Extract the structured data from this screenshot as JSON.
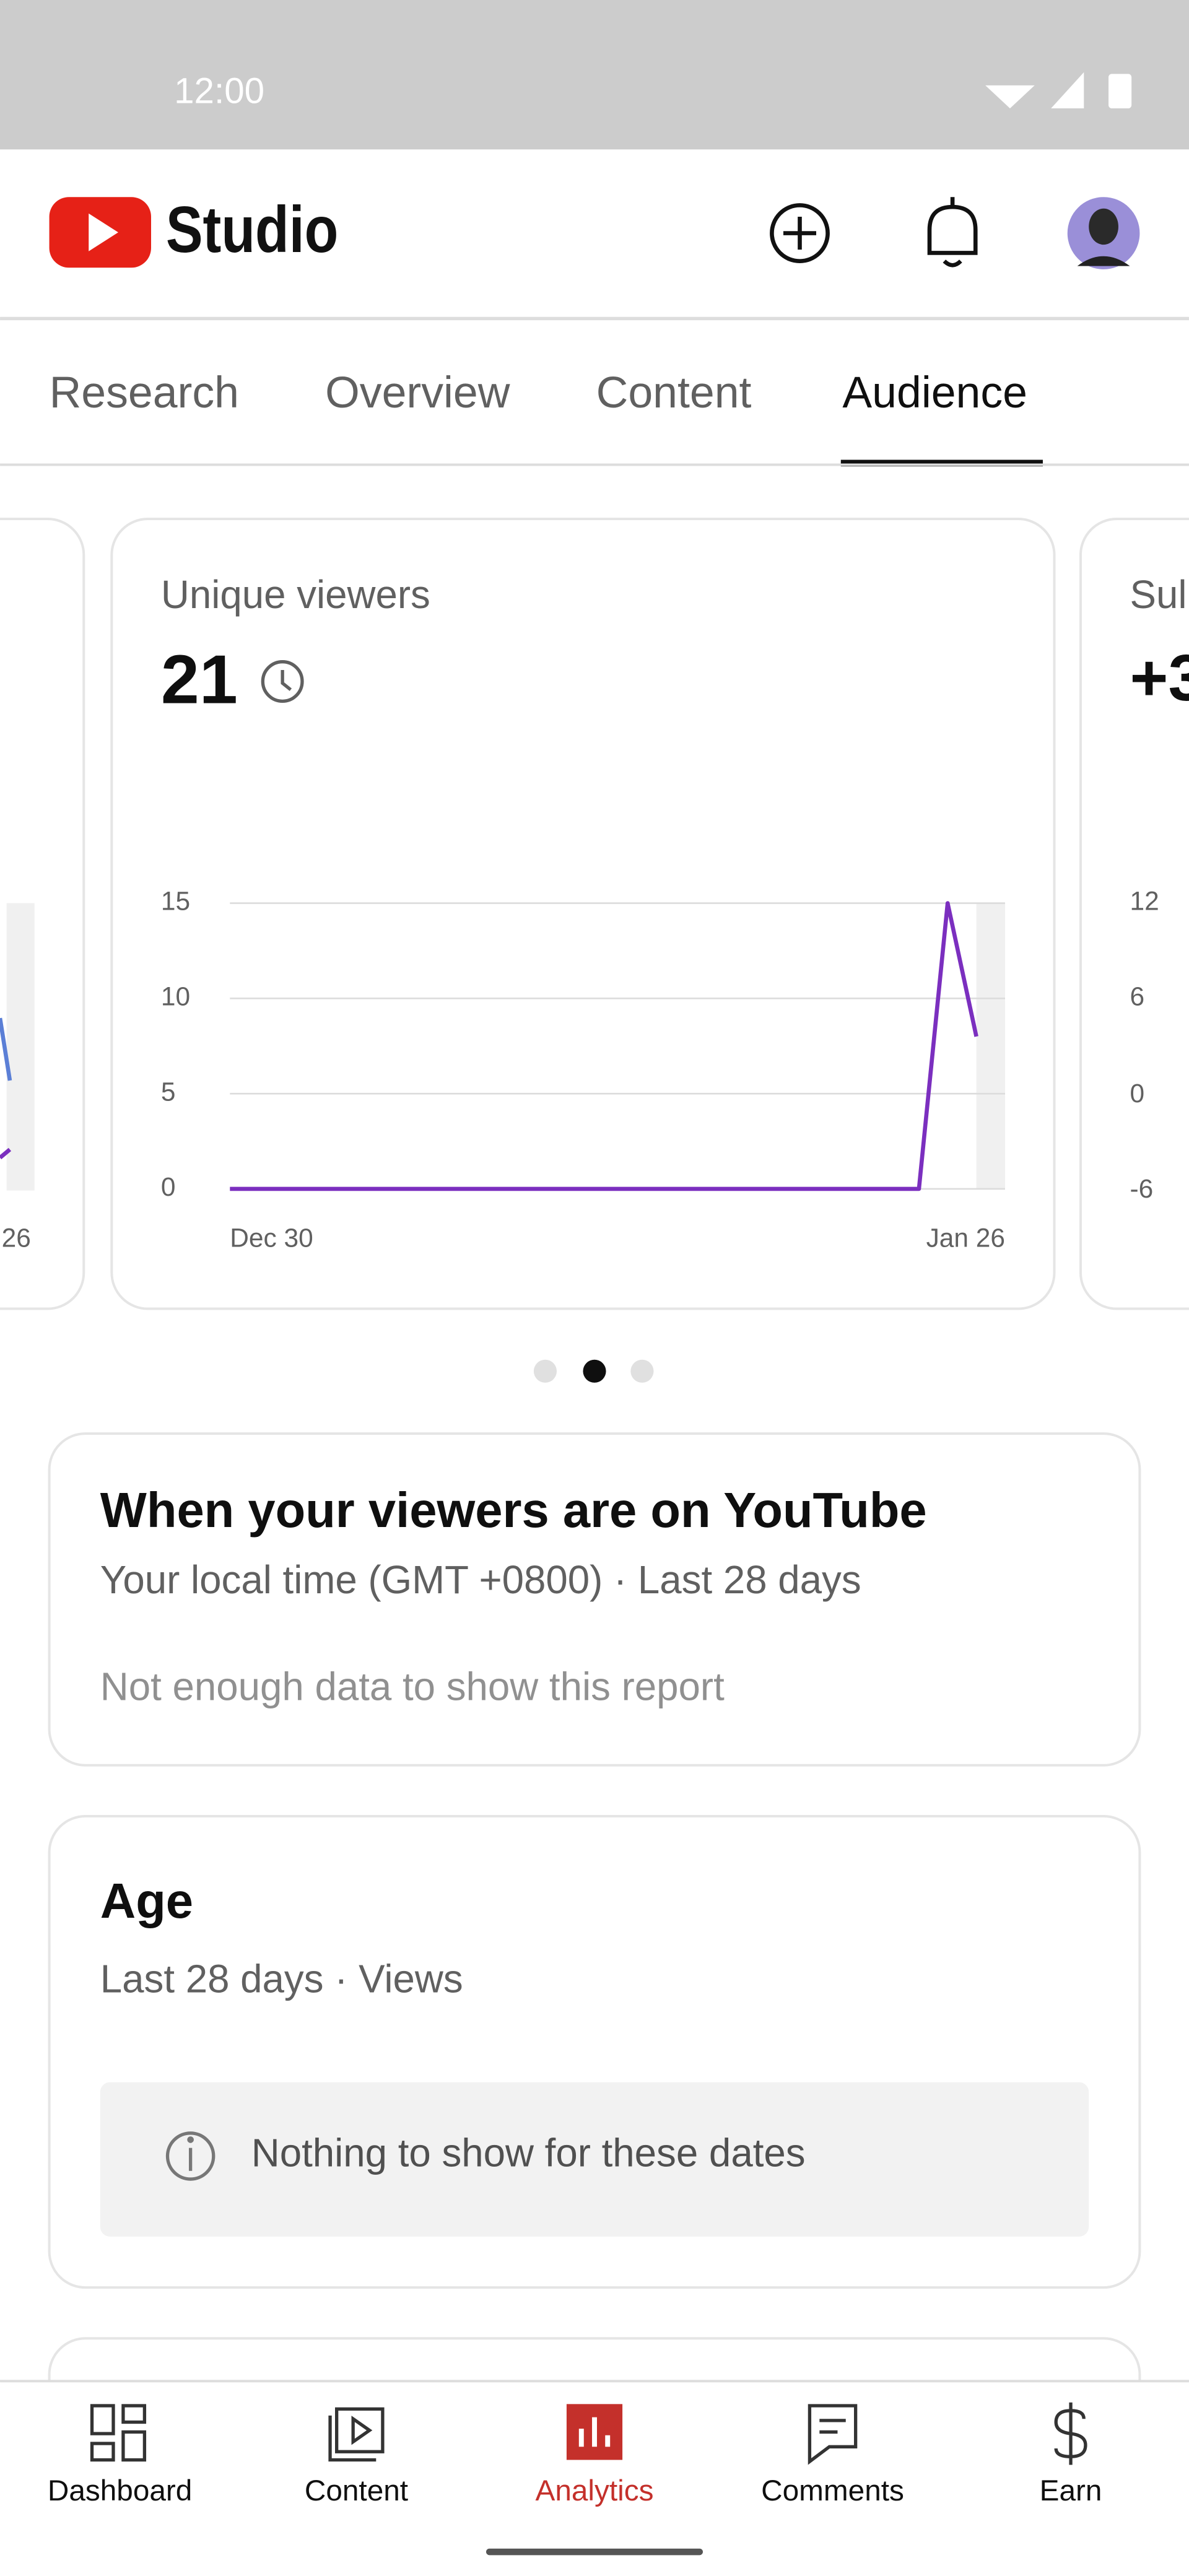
{
  "status_bar": {
    "time": "12:00"
  },
  "header": {
    "app_name": "Studio"
  },
  "tabs": [
    "Research",
    "Overview",
    "Content",
    "Audience"
  ],
  "peek": {
    "left_x_label": "26",
    "right_title": "Sul",
    "right_value": "+3",
    "right_yticks": [
      "12",
      "6",
      "0",
      "-6"
    ]
  },
  "chart_data": {
    "type": "line",
    "title": "Unique viewers",
    "subtitle": "21",
    "categories": [
      "Dec 30",
      null,
      null,
      null,
      null,
      null,
      null,
      null,
      null,
      null,
      null,
      null,
      null,
      null,
      null,
      null,
      null,
      null,
      null,
      null,
      null,
      null,
      null,
      null,
      null,
      null,
      null,
      "Jan 26"
    ],
    "series": [
      {
        "name": "Unique viewers",
        "color": "#7b2fbf",
        "values": [
          0,
          0,
          0,
          0,
          0,
          0,
          0,
          0,
          0,
          0,
          0,
          0,
          0,
          0,
          0,
          0,
          0,
          0,
          0,
          0,
          0,
          0,
          0,
          0,
          0,
          15,
          8,
          null
        ]
      }
    ],
    "ylim": [
      0,
      15
    ],
    "yticks": [
      0,
      5,
      10,
      15
    ],
    "grid": true
  },
  "viewers_time": {
    "title": "When your viewers are on YouTube",
    "subtitle": "Your local time (GMT +0800) · Last 28 days",
    "message": "Not enough data to show this report"
  },
  "age": {
    "title": "Age",
    "subtitle": "Last 28 days · Views",
    "message": "Nothing to show for these dates"
  },
  "bottom_nav": [
    "Dashboard",
    "Content",
    "Analytics",
    "Comments",
    "Earn"
  ]
}
